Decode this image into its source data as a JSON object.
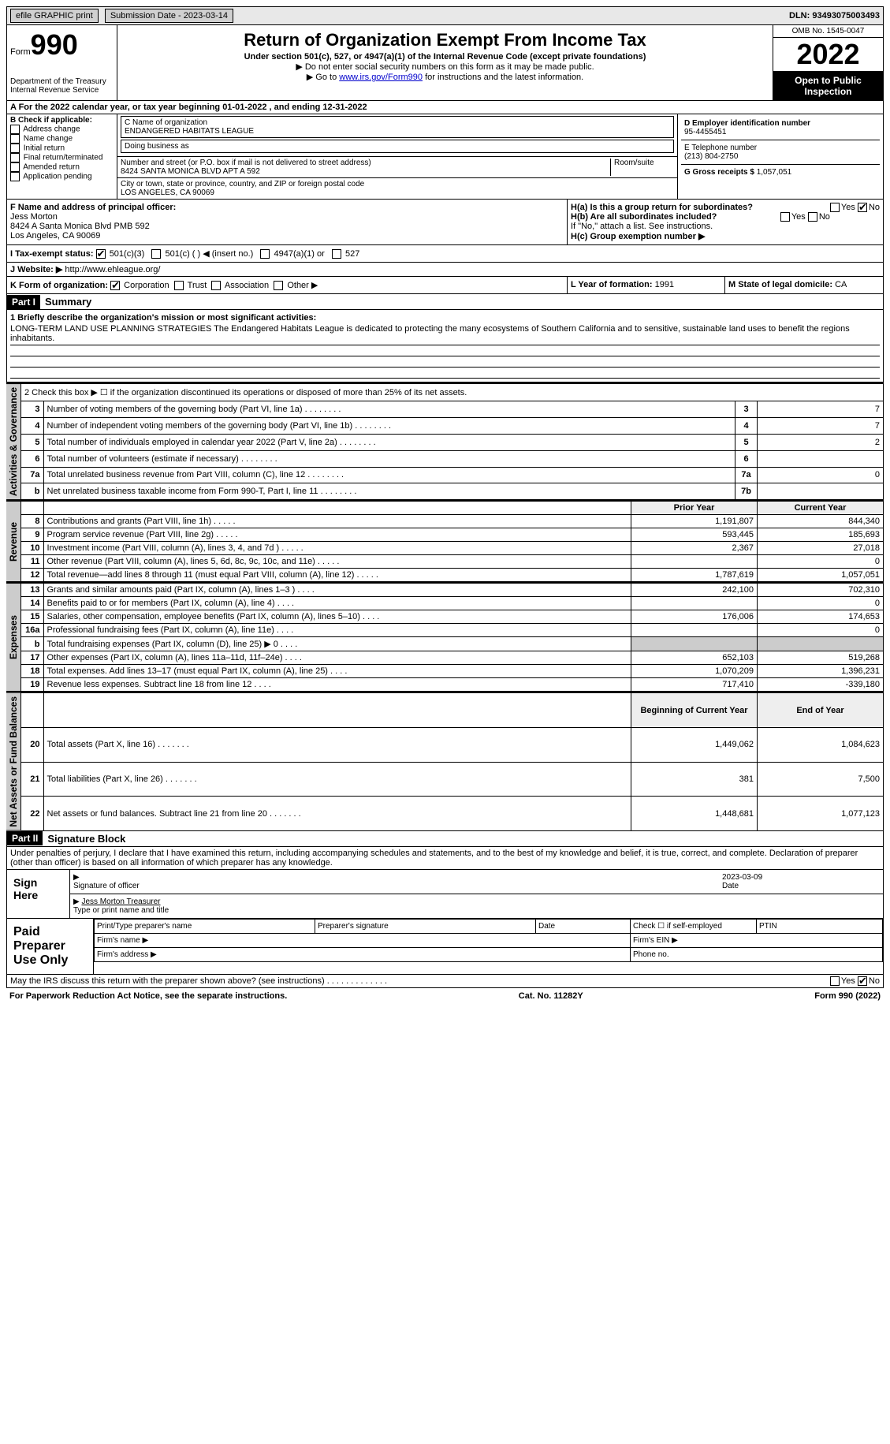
{
  "topbar": {
    "efile_label": "efile GRAPHIC print",
    "submission_label": "Submission Date - 2023-03-14",
    "dln_label": "DLN: 93493075003493"
  },
  "header": {
    "form_label": "Form",
    "form_num": "990",
    "dept": "Department of the Treasury\nInternal Revenue Service",
    "title": "Return of Organization Exempt From Income Tax",
    "subtitle": "Under section 501(c), 527, or 4947(a)(1) of the Internal Revenue Code (except private foundations)",
    "note1": "▶ Do not enter social security numbers on this form as it may be made public.",
    "note2_prefix": "▶ Go to ",
    "note2_link": "www.irs.gov/Form990",
    "note2_suffix": " for instructions and the latest information.",
    "omb": "OMB No. 1545-0047",
    "year": "2022",
    "open": "Open to Public Inspection"
  },
  "line_a": "A For the 2022 calendar year, or tax year beginning 01-01-2022    , and ending 12-31-2022",
  "box_b": {
    "label": "B Check if applicable:",
    "items": [
      "Address change",
      "Name change",
      "Initial return",
      "Final return/terminated",
      "Amended return",
      "Application pending"
    ]
  },
  "box_c": {
    "name_label": "C Name of organization",
    "name": "ENDANGERED HABITATS LEAGUE",
    "dba_label": "Doing business as",
    "dba": "",
    "street_label": "Number and street (or P.O. box if mail is not delivered to street address)",
    "room_label": "Room/suite",
    "street": "8424 SANTA MONICA BLVD APT A 592",
    "city_label": "City or town, state or province, country, and ZIP or foreign postal code",
    "city": "LOS ANGELES, CA  90069"
  },
  "box_d": {
    "label": "D Employer identification number",
    "value": "95-4455451"
  },
  "box_e": {
    "label": "E Telephone number",
    "value": "(213) 804-2750"
  },
  "box_g": {
    "label": "G Gross receipts $",
    "value": "1,057,051"
  },
  "box_f": {
    "label": "F Name and address of principal officer:",
    "name": "Jess Morton",
    "addr1": "8424 A Santa Monica Blvd PMB 592",
    "addr2": "Los Angeles, CA  90069"
  },
  "box_h": {
    "ha_label": "H(a) Is this a group return for subordinates?",
    "ha_no": "No",
    "hb_label": "H(b) Are all subordinates included?",
    "hb_note": "If \"No,\" attach a list. See instructions.",
    "hc_label": "H(c) Group exemption number ▶"
  },
  "box_i": {
    "label": "I Tax-exempt status:",
    "opts": [
      "501(c)(3)",
      "501(c) (  ) ◀ (insert no.)",
      "4947(a)(1) or",
      "527"
    ]
  },
  "box_j": {
    "label": "J Website: ▶",
    "url": "http://www.ehleague.org/"
  },
  "box_k": {
    "label": "K Form of organization:",
    "opts": [
      "Corporation",
      "Trust",
      "Association",
      "Other ▶"
    ]
  },
  "box_l": {
    "label": "L Year of formation:",
    "value": "1991"
  },
  "box_m": {
    "label": "M State of legal domicile:",
    "value": "CA"
  },
  "part1": {
    "hdr": "Part I",
    "title": "Summary",
    "mission_label": "1 Briefly describe the organization's mission or most significant activities:",
    "mission": "LONG-TERM LAND USE PLANNING STRATEGIES The Endangered Habitats League is dedicated to protecting the many ecosystems of Southern California and to sensitive, sustainable land uses to benefit the regions inhabitants.",
    "line2": "2   Check this box ▶ ☐ if the organization discontinued its operations or disposed of more than 25% of its net assets.",
    "vtabs": {
      "gov": "Activities & Governance",
      "rev": "Revenue",
      "exp": "Expenses",
      "net": "Net Assets or Fund Balances"
    },
    "gov_rows": [
      {
        "n": "3",
        "desc": "Number of voting members of the governing body (Part VI, line 1a)",
        "box": "3",
        "val": "7"
      },
      {
        "n": "4",
        "desc": "Number of independent voting members of the governing body (Part VI, line 1b)",
        "box": "4",
        "val": "7"
      },
      {
        "n": "5",
        "desc": "Total number of individuals employed in calendar year 2022 (Part V, line 2a)",
        "box": "5",
        "val": "2"
      },
      {
        "n": "6",
        "desc": "Total number of volunteers (estimate if necessary)",
        "box": "6",
        "val": ""
      },
      {
        "n": "7a",
        "desc": "Total unrelated business revenue from Part VIII, column (C), line 12",
        "box": "7a",
        "val": "0"
      },
      {
        "n": "b",
        "desc": "Net unrelated business taxable income from Form 990-T, Part I, line 11",
        "box": "7b",
        "val": ""
      }
    ],
    "col_hdr_prior": "Prior Year",
    "col_hdr_current": "Current Year",
    "rev_rows": [
      {
        "n": "8",
        "desc": "Contributions and grants (Part VIII, line 1h)",
        "prior": "1,191,807",
        "cur": "844,340"
      },
      {
        "n": "9",
        "desc": "Program service revenue (Part VIII, line 2g)",
        "prior": "593,445",
        "cur": "185,693"
      },
      {
        "n": "10",
        "desc": "Investment income (Part VIII, column (A), lines 3, 4, and 7d )",
        "prior": "2,367",
        "cur": "27,018"
      },
      {
        "n": "11",
        "desc": "Other revenue (Part VIII, column (A), lines 5, 6d, 8c, 9c, 10c, and 11e)",
        "prior": "",
        "cur": "0"
      },
      {
        "n": "12",
        "desc": "Total revenue—add lines 8 through 11 (must equal Part VIII, column (A), line 12)",
        "prior": "1,787,619",
        "cur": "1,057,051"
      }
    ],
    "exp_rows": [
      {
        "n": "13",
        "desc": "Grants and similar amounts paid (Part IX, column (A), lines 1–3 )",
        "prior": "242,100",
        "cur": "702,310"
      },
      {
        "n": "14",
        "desc": "Benefits paid to or for members (Part IX, column (A), line 4)",
        "prior": "",
        "cur": "0"
      },
      {
        "n": "15",
        "desc": "Salaries, other compensation, employee benefits (Part IX, column (A), lines 5–10)",
        "prior": "176,006",
        "cur": "174,653"
      },
      {
        "n": "16a",
        "desc": "Professional fundraising fees (Part IX, column (A), line 11e)",
        "prior": "",
        "cur": "0"
      },
      {
        "n": "b",
        "desc": "Total fundraising expenses (Part IX, column (D), line 25) ▶ 0",
        "prior": "GRAY",
        "cur": "GRAY"
      },
      {
        "n": "17",
        "desc": "Other expenses (Part IX, column (A), lines 11a–11d, 11f–24e)",
        "prior": "652,103",
        "cur": "519,268"
      },
      {
        "n": "18",
        "desc": "Total expenses. Add lines 13–17 (must equal Part IX, column (A), line 25)",
        "prior": "1,070,209",
        "cur": "1,396,231"
      },
      {
        "n": "19",
        "desc": "Revenue less expenses. Subtract line 18 from line 12",
        "prior": "717,410",
        "cur": "-339,180"
      }
    ],
    "net_hdr_begin": "Beginning of Current Year",
    "net_hdr_end": "End of Year",
    "net_rows": [
      {
        "n": "20",
        "desc": "Total assets (Part X, line 16)",
        "begin": "1,449,062",
        "end": "1,084,623"
      },
      {
        "n": "21",
        "desc": "Total liabilities (Part X, line 26)",
        "begin": "381",
        "end": "7,500"
      },
      {
        "n": "22",
        "desc": "Net assets or fund balances. Subtract line 21 from line 20",
        "begin": "1,448,681",
        "end": "1,077,123"
      }
    ]
  },
  "part2": {
    "hdr": "Part II",
    "title": "Signature Block",
    "decl": "Under penalties of perjury, I declare that I have examined this return, including accompanying schedules and statements, and to the best of my knowledge and belief, it is true, correct, and complete. Declaration of preparer (other than officer) is based on all information of which preparer has any knowledge.",
    "sign_here": "Sign Here",
    "sig_officer": "Signature of officer",
    "sig_date": "2023-03-09",
    "date_label": "Date",
    "name_title": "Jess Morton  Treasurer",
    "type_label": "Type or print name and title",
    "paid_label": "Paid Preparer Use Only",
    "p_name": "Print/Type preparer's name",
    "p_sig": "Preparer's signature",
    "p_date": "Date",
    "p_check": "Check ☐ if self-employed",
    "p_ptin": "PTIN",
    "p_firm": "Firm's name  ▶",
    "p_ein": "Firm's EIN ▶",
    "p_addr": "Firm's address ▶",
    "p_phone": "Phone no.",
    "discuss": "May the IRS discuss this return with the preparer shown above? (see instructions)",
    "yes": "Yes",
    "no": "No"
  },
  "footer": {
    "left": "For Paperwork Reduction Act Notice, see the separate instructions.",
    "mid": "Cat. No. 11282Y",
    "right": "Form 990 (2022)"
  }
}
